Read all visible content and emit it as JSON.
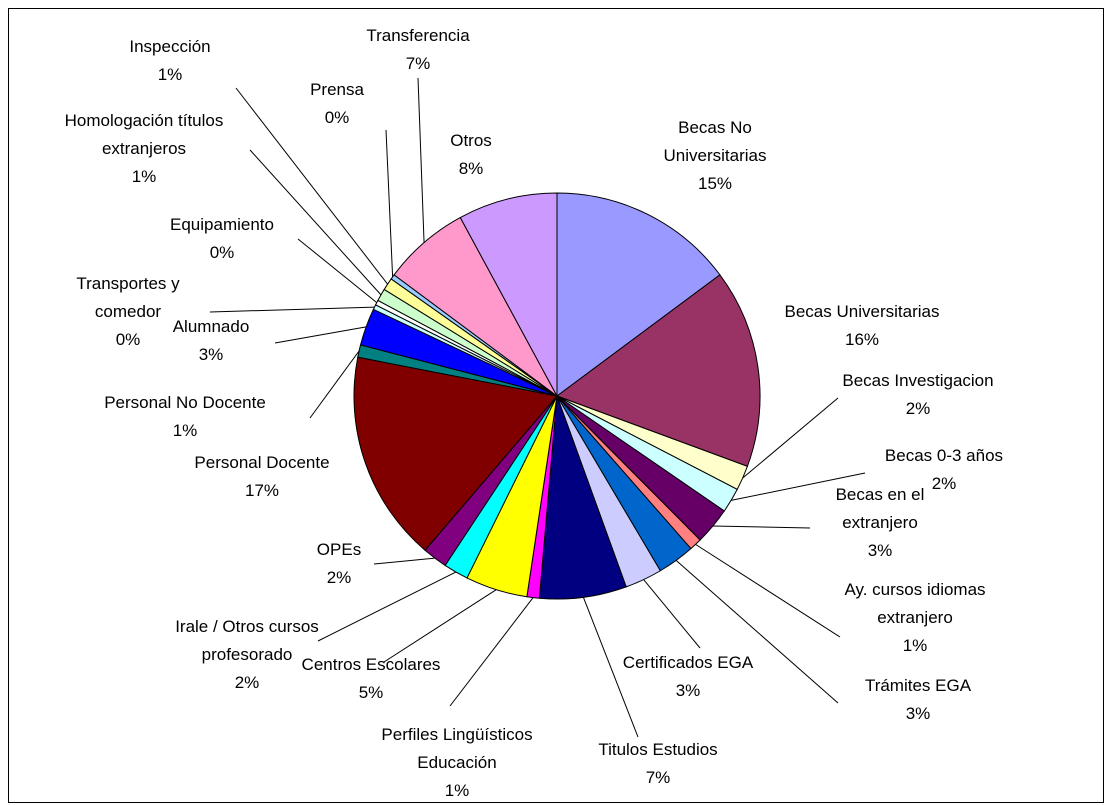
{
  "chart_data": {
    "type": "pie",
    "categories": [
      "Becas No Universitarias",
      "Becas Universitarias",
      "Becas Investigacion",
      "Becas 0-3 años",
      "Becas en el extranjero",
      "Ay. cursos idiomas extranjero",
      "Trámites EGA",
      "Certificados EGA",
      "Titulos Estudios",
      "Perfiles Lingüísticos Educación",
      "Centros Escolares",
      "Irale / Otros cursos profesorado",
      "OPEs",
      "Personal Docente",
      "Personal No Docente",
      "Alumnado",
      "Transportes y comedor",
      "Equipamiento",
      "Homologación títulos extranjeros",
      "Inspección",
      "Prensa",
      "Transferencia",
      "Otros"
    ],
    "values": [
      15,
      16,
      2,
      2,
      3,
      1,
      3,
      3,
      7,
      1,
      5,
      2,
      2,
      17,
      1,
      3,
      0.4,
      0.4,
      1,
      1,
      0.4,
      7,
      8
    ],
    "value_labels": [
      "15%",
      "16%",
      "2%",
      "2%",
      "3%",
      "1%",
      "3%",
      "3%",
      "7%",
      "1%",
      "5%",
      "2%",
      "2%",
      "17%",
      "1%",
      "3%",
      "0%",
      "0%",
      "1%",
      "1%",
      "0%",
      "7%",
      "8%"
    ],
    "colors": [
      "#9999FF",
      "#993366",
      "#FFFFCC",
      "#CCFFFF",
      "#660066",
      "#FF8080",
      "#0066CC",
      "#CCCCFF",
      "#000080",
      "#FF00FF",
      "#FFFF00",
      "#00FFFF",
      "#800080",
      "#800000",
      "#008080",
      "#0000FF",
      "#CCFFFF",
      "#FFFFFF",
      "#CCFFCC",
      "#FFFF99",
      "#99CCFF",
      "#FF99CC",
      "#CC99FF"
    ]
  }
}
